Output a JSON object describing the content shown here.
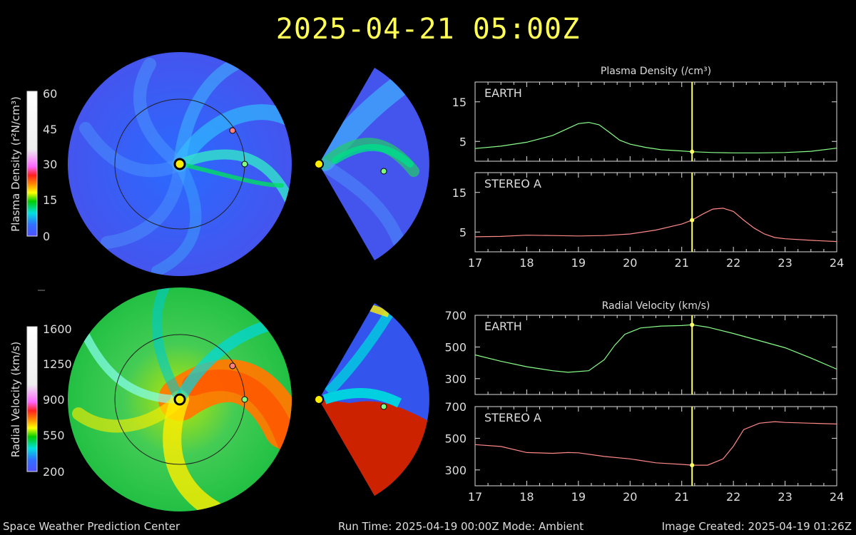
{
  "title": "2025-04-21 05:00Z",
  "footer": {
    "left": "Space Weather Prediction Center",
    "center": "Run Time: 2025-04-19 00:00Z  Mode: Ambient",
    "right": "Image Created: 2025-04-19 01:26Z"
  },
  "colorbars": [
    {
      "label": "Plasma Density (r²N/cm³)",
      "ticks": [
        "60",
        "45",
        "30",
        "15",
        "0"
      ]
    },
    {
      "label": "Radial Velocity (km/s)",
      "ticks": [
        "1600",
        "1250",
        "900",
        "550",
        "200"
      ]
    }
  ],
  "chart_data": [
    {
      "type": "line",
      "title": "Plasma Density (/cm³)",
      "x_ticks": [
        "17",
        "18",
        "19",
        "20",
        "21",
        "22",
        "23",
        "24"
      ],
      "xlim": [
        17,
        24
      ],
      "ylim": [
        0,
        20
      ],
      "y_ticks": [
        "15",
        "5"
      ],
      "y_tick_values": [
        15,
        5
      ],
      "current_time": 21.2,
      "series": [
        {
          "name": "EARTH",
          "color": "#88ff88",
          "x": [
            17,
            17.5,
            18,
            18.5,
            18.8,
            19.0,
            19.2,
            19.4,
            19.6,
            19.8,
            20.0,
            20.3,
            20.6,
            21.0,
            21.2,
            21.6,
            22,
            22.5,
            23,
            23.5,
            24
          ],
          "y": [
            3.2,
            3.8,
            4.8,
            6.5,
            8.3,
            9.5,
            9.8,
            9.2,
            7.3,
            5.3,
            4.3,
            3.5,
            2.9,
            2.6,
            2.4,
            2.2,
            2.1,
            2.1,
            2.2,
            2.5,
            3.3
          ]
        },
        {
          "name": "STEREO A",
          "color": "#ff8888",
          "x": [
            17,
            17.5,
            18,
            18.5,
            19,
            19.5,
            20,
            20.5,
            21,
            21.2,
            21.4,
            21.6,
            21.8,
            22.0,
            22.2,
            22.4,
            22.6,
            22.8,
            23,
            23.5,
            24
          ],
          "y": [
            3.8,
            3.9,
            4.2,
            4.1,
            4.0,
            4.1,
            4.5,
            5.5,
            7.0,
            8.0,
            9.5,
            10.8,
            11.0,
            10.2,
            8.0,
            6.0,
            4.5,
            3.6,
            3.3,
            2.9,
            2.6
          ]
        }
      ]
    },
    {
      "type": "line",
      "title": "Radial Velocity (km/s)",
      "x_ticks": [
        "17",
        "18",
        "19",
        "20",
        "21",
        "22",
        "23",
        "24"
      ],
      "xlim": [
        17,
        24
      ],
      "ylim": [
        200,
        700
      ],
      "y_ticks": [
        "700",
        "500",
        "300"
      ],
      "y_tick_values": [
        700,
        500,
        300
      ],
      "current_time": 21.2,
      "series": [
        {
          "name": "EARTH",
          "color": "#88ff88",
          "x": [
            17,
            17.5,
            18,
            18.5,
            18.8,
            19.2,
            19.5,
            19.7,
            19.9,
            20.2,
            20.6,
            21.0,
            21.2,
            21.5,
            22,
            22.5,
            23,
            23.5,
            24
          ],
          "y": [
            450,
            410,
            375,
            350,
            340,
            350,
            420,
            510,
            580,
            620,
            632,
            635,
            640,
            625,
            585,
            540,
            495,
            430,
            360
          ]
        },
        {
          "name": "STEREO A",
          "color": "#ff8888",
          "x": [
            17,
            17.5,
            18,
            18.5,
            18.8,
            19.0,
            19.5,
            20,
            20.5,
            21,
            21.2,
            21.5,
            21.8,
            22.0,
            22.2,
            22.5,
            22.8,
            23,
            23.5,
            24
          ],
          "y": [
            460,
            448,
            410,
            405,
            410,
            408,
            385,
            370,
            345,
            335,
            330,
            330,
            370,
            450,
            555,
            595,
            605,
            600,
            595,
            590
          ]
        }
      ]
    }
  ]
}
